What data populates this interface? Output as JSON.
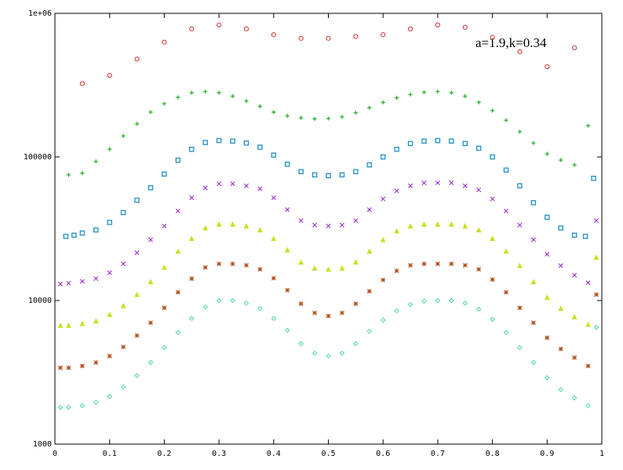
{
  "chart_data": {
    "type": "scatter",
    "annotation": "a=1.9,k=0.34",
    "xlim": [
      0,
      1
    ],
    "xticks": [
      0,
      0.1,
      0.2,
      0.3,
      0.4,
      0.5,
      0.6,
      0.7,
      0.8,
      0.9,
      1
    ],
    "ylim": [
      1000,
      1000000
    ],
    "yscale": "log",
    "yticks": [
      1000,
      10000,
      100000,
      {
        "value": 1000000,
        "label": "1e+06"
      }
    ],
    "series": [
      {
        "color": "#d03030",
        "marker": "circle",
        "x": [
          0.05,
          0.1,
          0.15,
          0.2,
          0.25,
          0.3,
          0.35,
          0.4,
          0.45,
          0.5,
          0.55,
          0.6,
          0.65,
          0.7,
          0.75,
          0.8,
          0.85,
          0.9,
          0.95
        ],
        "values": [
          324000,
          370000,
          480000,
          630000,
          780000,
          830000,
          780000,
          710000,
          670000,
          670000,
          690000,
          710000,
          780000,
          830000,
          800000,
          680000,
          540000,
          425000,
          575000
        ]
      },
      {
        "color": "#30b030",
        "marker": "plus",
        "x": [
          0.025,
          0.05,
          0.075,
          0.1,
          0.125,
          0.15,
          0.175,
          0.2,
          0.225,
          0.25,
          0.275,
          0.3,
          0.325,
          0.35,
          0.375,
          0.4,
          0.425,
          0.45,
          0.475,
          0.5,
          0.525,
          0.55,
          0.575,
          0.6,
          0.625,
          0.65,
          0.675,
          0.7,
          0.725,
          0.75,
          0.775,
          0.8,
          0.825,
          0.85,
          0.875,
          0.9,
          0.925,
          0.95,
          0.975
        ],
        "values": [
          75000,
          77000,
          93000,
          113000,
          140000,
          170000,
          205000,
          235000,
          260000,
          280000,
          285000,
          280000,
          265000,
          245000,
          225000,
          205000,
          193000,
          187000,
          184000,
          185000,
          190000,
          203000,
          220000,
          240000,
          258000,
          272000,
          282000,
          285000,
          280000,
          265000,
          240000,
          210000,
          180000,
          150000,
          125000,
          105000,
          95000,
          88000,
          165000
        ]
      },
      {
        "color": "#2090c8",
        "marker": "square",
        "x": [
          0.02,
          0.035,
          0.05,
          0.075,
          0.1,
          0.125,
          0.15,
          0.175,
          0.2,
          0.225,
          0.25,
          0.275,
          0.3,
          0.325,
          0.35,
          0.375,
          0.4,
          0.425,
          0.45,
          0.475,
          0.5,
          0.525,
          0.55,
          0.575,
          0.6,
          0.625,
          0.65,
          0.675,
          0.7,
          0.725,
          0.75,
          0.775,
          0.8,
          0.825,
          0.85,
          0.875,
          0.9,
          0.925,
          0.95,
          0.97,
          0.985
        ],
        "values": [
          28000,
          28500,
          29500,
          31000,
          35000,
          41000,
          50000,
          61000,
          76000,
          95000,
          113000,
          126000,
          130000,
          129000,
          125000,
          117000,
          103000,
          89000,
          79000,
          75000,
          74000,
          75000,
          79000,
          88000,
          100000,
          113000,
          124000,
          129000,
          130000,
          129000,
          124000,
          115000,
          100000,
          81000,
          63000,
          48000,
          38000,
          32000,
          28500,
          28000,
          71000
        ]
      },
      {
        "color": "#a030d0",
        "marker": "cross",
        "x": [
          0.01,
          0.025,
          0.05,
          0.075,
          0.1,
          0.125,
          0.15,
          0.175,
          0.2,
          0.225,
          0.25,
          0.275,
          0.3,
          0.325,
          0.35,
          0.375,
          0.4,
          0.425,
          0.45,
          0.475,
          0.5,
          0.525,
          0.55,
          0.575,
          0.6,
          0.625,
          0.65,
          0.675,
          0.7,
          0.725,
          0.75,
          0.775,
          0.8,
          0.825,
          0.85,
          0.875,
          0.9,
          0.925,
          0.95,
          0.975,
          0.99
        ],
        "values": [
          13000,
          13200,
          13600,
          14200,
          15600,
          18000,
          21500,
          26500,
          33000,
          42000,
          52000,
          61000,
          65000,
          65000,
          63000,
          60000,
          52000,
          43000,
          36000,
          33500,
          33000,
          33500,
          36000,
          43000,
          51000,
          58000,
          63000,
          66000,
          66000,
          66000,
          63000,
          59000,
          51000,
          42000,
          33500,
          26500,
          21000,
          17500,
          15000,
          13300,
          36000
        ]
      },
      {
        "color": "#c8e020",
        "marker": "triangle",
        "x": [
          0.01,
          0.025,
          0.05,
          0.075,
          0.1,
          0.125,
          0.15,
          0.175,
          0.2,
          0.225,
          0.25,
          0.275,
          0.3,
          0.325,
          0.35,
          0.375,
          0.4,
          0.425,
          0.45,
          0.475,
          0.5,
          0.525,
          0.55,
          0.575,
          0.6,
          0.625,
          0.65,
          0.675,
          0.7,
          0.725,
          0.75,
          0.775,
          0.8,
          0.825,
          0.85,
          0.875,
          0.9,
          0.925,
          0.95,
          0.975,
          0.99
        ],
        "values": [
          6700,
          6700,
          6900,
          7200,
          8000,
          9200,
          11000,
          13500,
          17000,
          22000,
          27000,
          32000,
          34000,
          34000,
          33000,
          31000,
          27000,
          22500,
          18500,
          16800,
          16500,
          16800,
          18500,
          22000,
          26500,
          30500,
          33000,
          34000,
          34000,
          34000,
          33000,
          31000,
          27000,
          22000,
          17500,
          13500,
          10500,
          8800,
          7700,
          6800,
          20000
        ]
      },
      {
        "color": "#b04a10",
        "marker": "star",
        "x": [
          0.01,
          0.025,
          0.05,
          0.075,
          0.1,
          0.125,
          0.15,
          0.175,
          0.2,
          0.225,
          0.25,
          0.275,
          0.3,
          0.325,
          0.35,
          0.375,
          0.4,
          0.425,
          0.45,
          0.475,
          0.5,
          0.525,
          0.55,
          0.575,
          0.6,
          0.625,
          0.65,
          0.675,
          0.7,
          0.725,
          0.75,
          0.775,
          0.8,
          0.825,
          0.85,
          0.875,
          0.9,
          0.925,
          0.95,
          0.975,
          0.99
        ],
        "values": [
          3400,
          3400,
          3500,
          3700,
          4100,
          4750,
          5700,
          7000,
          8900,
          11400,
          14200,
          17000,
          18000,
          18000,
          17600,
          16500,
          14300,
          11800,
          9500,
          8200,
          7800,
          8200,
          9500,
          11600,
          13900,
          16100,
          17600,
          18000,
          18000,
          18000,
          17600,
          16500,
          14000,
          11400,
          8900,
          7000,
          5500,
          4600,
          4000,
          3500,
          11000
        ]
      },
      {
        "color": "#50d8a8",
        "marker": "diamond",
        "x": [
          0.01,
          0.025,
          0.05,
          0.075,
          0.1,
          0.125,
          0.15,
          0.175,
          0.2,
          0.225,
          0.25,
          0.275,
          0.3,
          0.325,
          0.35,
          0.375,
          0.4,
          0.425,
          0.45,
          0.475,
          0.5,
          0.525,
          0.55,
          0.575,
          0.6,
          0.625,
          0.65,
          0.675,
          0.7,
          0.725,
          0.75,
          0.775,
          0.8,
          0.825,
          0.85,
          0.875,
          0.9,
          0.925,
          0.95,
          0.975,
          0.99
        ],
        "values": [
          1800,
          1800,
          1850,
          1950,
          2150,
          2500,
          3000,
          3700,
          4700,
          6000,
          7500,
          9000,
          10000,
          10000,
          9600,
          8800,
          7500,
          6200,
          5000,
          4300,
          4100,
          4300,
          5000,
          6100,
          7300,
          8500,
          9400,
          9900,
          10000,
          10000,
          9600,
          8700,
          7400,
          6000,
          4700,
          3700,
          2900,
          2400,
          2100,
          1850,
          6500
        ]
      }
    ]
  }
}
